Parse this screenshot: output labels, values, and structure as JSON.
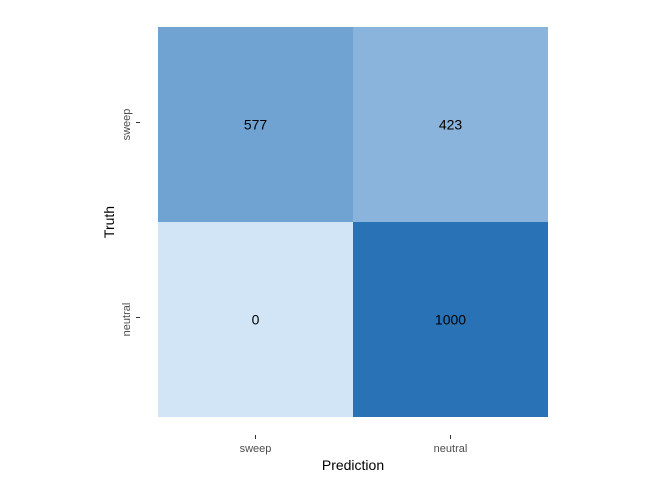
{
  "chart_data": {
    "type": "heatmap",
    "title": "",
    "xlabel": "Prediction",
    "ylabel": "Truth",
    "x_categories": [
      "sweep",
      "neutral"
    ],
    "y_categories": [
      "sweep",
      "neutral"
    ],
    "values": [
      [
        577,
        423
      ],
      [
        0,
        1000
      ]
    ],
    "value_range": [
      0,
      1000
    ],
    "color_low": "#d2e5f7",
    "color_high": "#2872b5",
    "grid": false,
    "legend": "none"
  }
}
